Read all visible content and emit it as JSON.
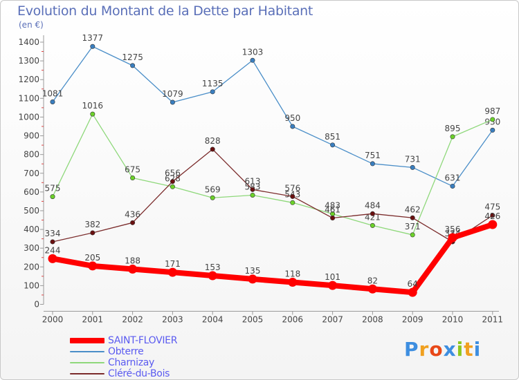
{
  "title": "Evolution du Montant de la Dette par Habitant",
  "subtitle": "(en €)",
  "brand": {
    "text": "Proxiti",
    "letters": [
      "P",
      "r",
      "o",
      "x",
      "i",
      "t",
      "i"
    ],
    "letter_colors": [
      "#3d8ee0",
      "#f0a020",
      "#e84818",
      "#3d8ee0",
      "#8cc820",
      "#f0a020",
      "#3d8ee0"
    ]
  },
  "chart_data": {
    "type": "line",
    "x": [
      "2000",
      "2001",
      "2002",
      "2003",
      "2004",
      "2005",
      "2006",
      "2007",
      "2008",
      "2009",
      "2010",
      "2011"
    ],
    "ylim": [
      0,
      1400
    ],
    "yticks": [
      0,
      100,
      200,
      300,
      400,
      500,
      600,
      700,
      800,
      900,
      1000,
      1100,
      1200,
      1300,
      1400
    ],
    "grid": false,
    "legend_position": "bottom-left",
    "series": [
      {
        "name": "Obterre",
        "color": "#4a8ec8",
        "point_color": "#3a7fc0",
        "thick": false,
        "values": [
          1081,
          1377,
          1275,
          1079,
          1135,
          1303,
          950,
          851,
          751,
          731,
          631,
          930
        ]
      },
      {
        "name": "Charnizay",
        "color": "#8ed87a",
        "point_color": "#6cd22a",
        "thick": false,
        "values": [
          575,
          1016,
          675,
          628,
          569,
          583,
          543,
          483,
          421,
          371,
          895,
          987
        ]
      },
      {
        "name": "Cléré-du-Bois",
        "color": "#7a2a2a",
        "point_color": "#6a1010",
        "thick": false,
        "values": [
          334,
          382,
          436,
          656,
          828,
          613,
          576,
          461,
          484,
          462,
          334,
          475
        ]
      },
      {
        "name": "SAINT-FLOVIER",
        "color": "#ff0000",
        "point_color": "#ff0000",
        "thick": true,
        "values": [
          244,
          205,
          188,
          171,
          153,
          135,
          118,
          101,
          82,
          64,
          356,
          426
        ]
      }
    ],
    "legend_order": [
      "SAINT-FLOVIER",
      "Obterre",
      "Charnizay",
      "Cléré-du-Bois"
    ]
  }
}
